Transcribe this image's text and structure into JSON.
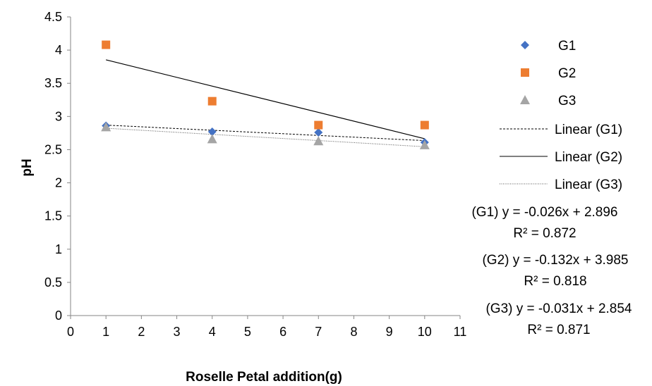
{
  "chart_data": {
    "type": "scatter",
    "title": "",
    "xlabel": "Roselle Petal addition(g)",
    "ylabel": "pH",
    "xlim": [
      0,
      11
    ],
    "ylim": [
      0,
      4.5
    ],
    "x_ticks": [
      "0",
      "1",
      "2",
      "3",
      "4",
      "5",
      "6",
      "7",
      "8",
      "9",
      "10",
      "11"
    ],
    "y_ticks": [
      "0",
      "0.5",
      "1",
      "1.5",
      "2",
      "2.5",
      "3",
      "3.5",
      "4",
      "4.5"
    ],
    "grid": false,
    "legend_position": "right",
    "series": [
      {
        "name": "G1",
        "marker": "diamond",
        "color": "#4472C4",
        "x": [
          1,
          4,
          7,
          10
        ],
        "y": [
          2.86,
          2.77,
          2.76,
          2.61
        ]
      },
      {
        "name": "G2",
        "marker": "square",
        "color": "#ED7D31",
        "x": [
          1,
          4,
          7,
          10
        ],
        "y": [
          4.08,
          3.23,
          2.87,
          2.87
        ]
      },
      {
        "name": "G3",
        "marker": "triangle",
        "color": "#A5A5A5",
        "x": [
          1,
          4,
          7,
          10
        ],
        "y": [
          2.84,
          2.66,
          2.63,
          2.57
        ]
      }
    ],
    "trendlines": [
      {
        "name": "Linear (G1)",
        "style": "dashed",
        "slope": -0.026,
        "intercept": 2.896
      },
      {
        "name": "Linear (G2)",
        "style": "solid",
        "slope": -0.132,
        "intercept": 3.985
      },
      {
        "name": "Linear (G3)",
        "style": "dotted",
        "slope": -0.031,
        "intercept": 2.854
      }
    ],
    "equations": [
      {
        "equation": "(G1) y = -0.026x + 2.896",
        "r2": "R² = 0.872"
      },
      {
        "equation": "(G2) y = -0.132x + 3.985",
        "r2": "R² = 0.818"
      },
      {
        "equation": "(G3) y = -0.031x + 2.854",
        "r2": "R² = 0.871"
      }
    ]
  }
}
